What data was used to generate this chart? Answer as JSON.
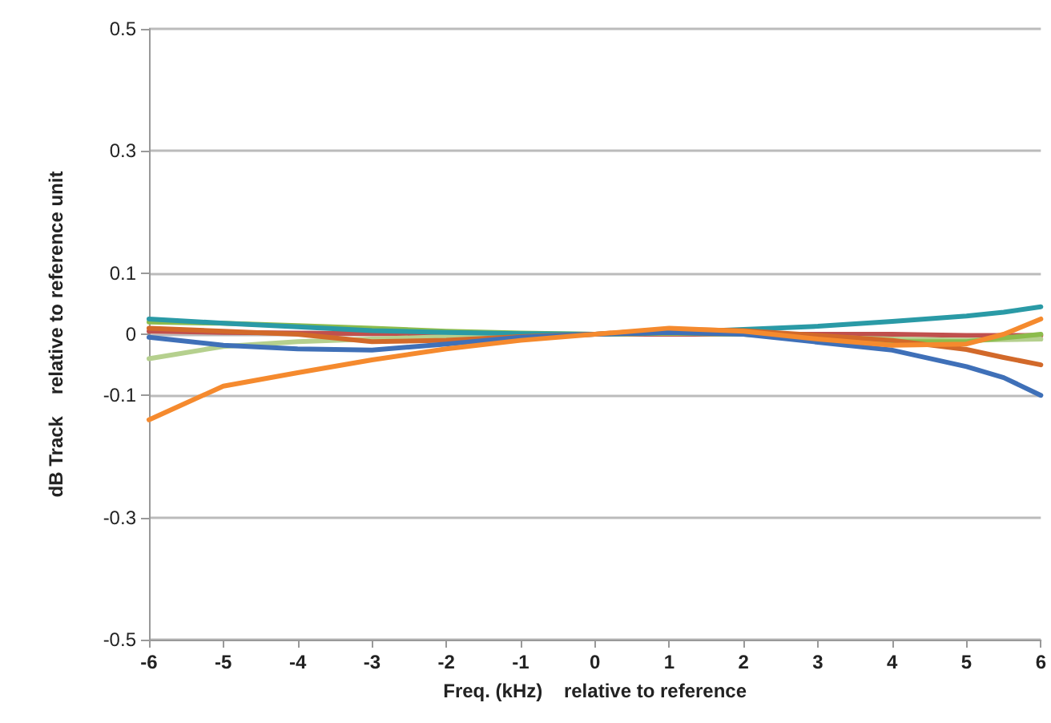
{
  "chart_data": {
    "type": "line",
    "xlabel": "Freq. (kHz)    relative to reference",
    "ylabel": "dB Track    relative to reference unit",
    "x": [
      -6,
      -5,
      -4,
      -3,
      -2,
      -1,
      0,
      1,
      2,
      3,
      4,
      5,
      5.5,
      6
    ],
    "series": [
      {
        "color": "#c0504d",
        "values": [
          0.005,
          0.003,
          0.002,
          0.001,
          0.001,
          0,
          0,
          0,
          0,
          0,
          0,
          -0.002,
          -0.002,
          -0.002
        ]
      },
      {
        "color": "#b5d08e",
        "values": [
          -0.04,
          -0.02,
          -0.012,
          -0.008,
          -0.004,
          -0.001,
          0,
          0.002,
          0,
          -0.005,
          -0.008,
          -0.01,
          -0.009,
          -0.008
        ]
      },
      {
        "color": "#8cbc4c",
        "values": [
          0.02,
          0.018,
          0.014,
          0.01,
          0.005,
          0.002,
          0,
          0.002,
          0,
          -0.006,
          -0.012,
          -0.012,
          -0.006,
          0
        ]
      },
      {
        "color": "#2a9aa6",
        "values": [
          0.025,
          0.018,
          0.012,
          0.006,
          0.003,
          0.001,
          0,
          0.003,
          0.008,
          0.013,
          0.021,
          0.03,
          0.036,
          0.045
        ]
      },
      {
        "color": "#d2692a",
        "values": [
          0.01,
          0.005,
          0,
          -0.012,
          -0.01,
          -0.004,
          0,
          0.008,
          0.006,
          -0.002,
          -0.01,
          -0.025,
          -0.038,
          -0.05
        ]
      },
      {
        "color": "#3f70b8",
        "values": [
          -0.005,
          -0.018,
          -0.024,
          -0.026,
          -0.016,
          -0.005,
          0,
          0.003,
          0,
          -0.013,
          -0.026,
          -0.053,
          -0.071,
          -0.1
        ]
      },
      {
        "color": "#f58a2e",
        "values": [
          -0.14,
          -0.085,
          -0.063,
          -0.042,
          -0.024,
          -0.01,
          0,
          0.01,
          0.005,
          -0.008,
          -0.018,
          -0.016,
          0,
          0.025
        ]
      }
    ],
    "xlim": [
      -6,
      6
    ],
    "xticks": [
      -6,
      -5,
      -4,
      -3,
      -2,
      -1,
      0,
      1,
      2,
      3,
      4,
      5,
      6
    ],
    "ylim": [
      -0.5,
      0.5
    ],
    "yticks": [
      -0.5,
      -0.3,
      -0.1,
      0,
      0.1,
      0.3,
      0.5
    ],
    "grid": "y",
    "marker": "none",
    "line_style": "solid"
  }
}
